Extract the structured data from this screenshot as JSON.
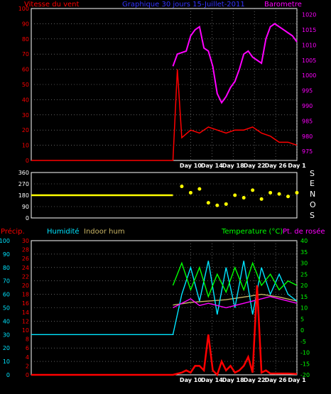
{
  "panel1": {
    "title_left": "Vitesse du vent",
    "title_center": "Graphique 30 jours 15-Juillet-2011",
    "title_right": "Barometre",
    "colors": {
      "wind_title": "#ff0000",
      "center_title": "#3333ff",
      "baro_title": "#ff00ff"
    }
  },
  "panel2": {
    "compass_letters": [
      "S",
      "E",
      "N",
      "O",
      "S"
    ]
  },
  "panel3": {
    "title_precip": "Précip.",
    "title_humidity": "Humidité",
    "title_indoor": "Indoor hum",
    "title_temp": "Temperature (°C)",
    "title_dew": "Pt. de rosée",
    "colors": {
      "precip": "#ff0000",
      "humidity": "#00e5ff",
      "indoor": "#c8b464",
      "temp": "#00ff00",
      "dew": "#ff00ff"
    }
  },
  "chart_data": [
    {
      "type": "line",
      "title": "Graphique 30 jours 15-Juillet-2011",
      "x_ticks": [
        "Day 10",
        "Day 14",
        "Day 18",
        "Day 22",
        "Day 26",
        "Day 1"
      ],
      "y_left_ticks": [
        "0",
        "10",
        "20",
        "30",
        "40",
        "50",
        "60",
        "70",
        "80",
        "90",
        "100"
      ],
      "y_right_ticks": [
        "975",
        "980",
        "985",
        "990",
        "995",
        "1000",
        "1005",
        "1010",
        "1015",
        "1020"
      ],
      "ylim_left": [
        0,
        100
      ],
      "ylim_right": [
        972,
        1022
      ],
      "series": [
        {
          "name": "Vitesse du vent",
          "color": "#ff0000",
          "axis": "left",
          "x": [
            0,
            16,
            16.5,
            17,
            18,
            19,
            20,
            21,
            22,
            23,
            24,
            25,
            26,
            27,
            28,
            29,
            30
          ],
          "values": [
            0,
            0,
            60,
            15,
            20,
            18,
            22,
            20,
            18,
            20,
            20,
            22,
            18,
            16,
            12,
            12,
            10
          ]
        },
        {
          "name": "Barometre",
          "color": "#ff00ff",
          "axis": "right",
          "x": [
            16,
            16.5,
            17.5,
            18,
            18.5,
            19,
            19.5,
            20,
            20.5,
            21,
            21.5,
            22,
            22.5,
            23,
            23.5,
            24,
            24.5,
            25,
            25.5,
            26,
            26.5,
            27,
            27.5,
            28,
            28.5,
            29,
            29.5,
            30
          ],
          "values": [
            1003,
            1007,
            1008,
            1013,
            1015,
            1016,
            1009,
            1008,
            1003,
            994,
            991,
            993,
            996,
            998,
            1002,
            1007,
            1008,
            1006,
            1005,
            1004,
            1012,
            1016,
            1017,
            1016,
            1015,
            1014,
            1013,
            1011
          ]
        }
      ]
    },
    {
      "type": "scatter",
      "title": "",
      "x_ticks": [],
      "y_ticks": [
        "0",
        "90",
        "180",
        "270",
        "360"
      ],
      "ylim": [
        0,
        360
      ],
      "series": [
        {
          "name": "wind direction",
          "color": "#ffff00",
          "x": [
            0,
            16,
            17,
            18,
            19,
            20,
            21,
            22,
            23,
            24,
            25,
            26,
            27,
            28,
            29,
            30
          ],
          "values": [
            180,
            180,
            250,
            200,
            230,
            120,
            100,
            110,
            180,
            160,
            220,
            150,
            200,
            190,
            170,
            200
          ]
        }
      ]
    },
    {
      "type": "line",
      "title": "",
      "x_ticks": [
        "Day 10",
        "Day 14",
        "Day 18",
        "Day 22",
        "Day 26",
        "Day 1"
      ],
      "y_precip_ticks": [
        "0",
        "2",
        "4",
        "6",
        "8",
        "10",
        "12",
        "14",
        "16",
        "18",
        "20",
        "22",
        "24",
        "26",
        "28",
        "30"
      ],
      "y_humidity_ticks": [
        "0",
        "10",
        "20",
        "30",
        "40",
        "50",
        "60",
        "70",
        "80",
        "90",
        "100"
      ],
      "y_temp_ticks": [
        "-20",
        "-15",
        "-10",
        "-5",
        "0",
        "5",
        "10",
        "15",
        "20",
        "25",
        "30",
        "35",
        "40"
      ],
      "ylim_precip": [
        0,
        30
      ],
      "ylim_humidity": [
        0,
        100
      ],
      "ylim_temp": [
        -20,
        40
      ],
      "series": [
        {
          "name": "Précip.",
          "color": "#ff0000",
          "axis": "precip",
          "x": [
            0,
            16,
            17,
            17.5,
            18,
            18.5,
            19,
            19.5,
            20,
            20.5,
            21,
            21.5,
            22,
            22.5,
            23,
            23.5,
            24,
            24.5,
            25,
            25.5,
            26,
            26.5,
            27,
            28,
            29,
            30
          ],
          "values": [
            0,
            0,
            0.5,
            1,
            0.5,
            2,
            2,
            1,
            9,
            1,
            0,
            3,
            1,
            2,
            0.5,
            1,
            2,
            4,
            0.5,
            20,
            0.5,
            1,
            0.3,
            0.3,
            0.3,
            0.2
          ]
        },
        {
          "name": "Humidité",
          "color": "#00e5ff",
          "axis": "humidity",
          "x": [
            0,
            16,
            17,
            18,
            19,
            20,
            21,
            22,
            23,
            24,
            25,
            26,
            27,
            28,
            29,
            30
          ],
          "values": [
            30,
            30,
            60,
            80,
            55,
            85,
            45,
            80,
            50,
            85,
            45,
            80,
            60,
            75,
            60,
            55
          ]
        },
        {
          "name": "Indoor hum",
          "color": "#c8b464",
          "axis": "humidity",
          "x": [
            16,
            18,
            20,
            22,
            24,
            26,
            28,
            30
          ],
          "values": [
            52,
            54,
            55,
            56,
            58,
            60,
            58,
            55
          ]
        },
        {
          "name": "Temperature (°C)",
          "color": "#00ff00",
          "axis": "temp",
          "x": [
            16,
            17,
            18,
            19,
            20,
            21,
            22,
            23,
            24,
            25,
            26,
            27,
            28,
            29,
            30
          ],
          "values": [
            20,
            30,
            18,
            28,
            15,
            25,
            17,
            28,
            18,
            30,
            20,
            25,
            18,
            22,
            20
          ]
        },
        {
          "name": "Pt. de rosée",
          "color": "#ff00ff",
          "axis": "temp",
          "x": [
            16,
            17,
            18,
            19,
            20,
            21,
            22,
            23,
            24,
            25,
            26,
            27,
            28,
            29,
            30
          ],
          "values": [
            10,
            12,
            14,
            11,
            12,
            11,
            10,
            11,
            12,
            13,
            14,
            15,
            14,
            13,
            12
          ]
        }
      ]
    }
  ]
}
